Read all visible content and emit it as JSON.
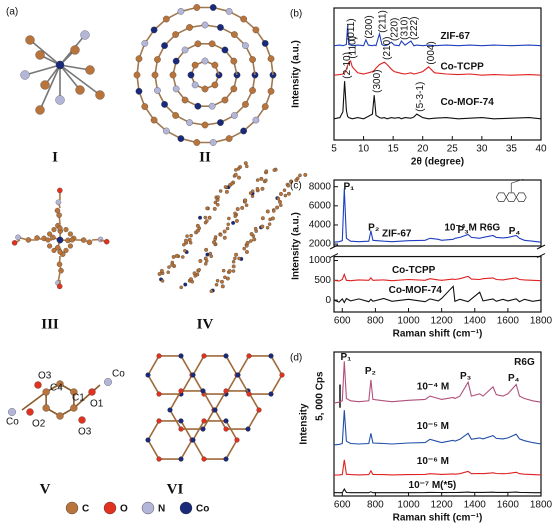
{
  "panel_a": {
    "label": "(a)",
    "structures": [
      "I",
      "II",
      "III",
      "IV",
      "V",
      "VI"
    ],
    "v_labels": [
      "O3",
      "C4",
      "Co",
      "O2",
      "C1",
      "O1",
      "Co",
      "O3"
    ],
    "legend": [
      {
        "name": "C",
        "color": "#b8743a"
      },
      {
        "name": "O",
        "color": "#e0321f"
      },
      {
        "name": "N",
        "color": "#b3b6d9"
      },
      {
        "name": "Co",
        "color": "#1a2a7a"
      }
    ]
  },
  "chart_data": [
    {
      "type": "line",
      "panel_label": "(b)",
      "x_label": "2θ (degree)",
      "y_label": "Intensity (a.u.)",
      "x": [
        5,
        6,
        6.5,
        6.8,
        7.1,
        7.3,
        7.5,
        7.8,
        8.1,
        9,
        10,
        10.4,
        10.8,
        11.5,
        11.8,
        12.1,
        12.7,
        13.1,
        13.5,
        14,
        14.7,
        15.2,
        16,
        16.4,
        17,
        18,
        18.5,
        19,
        20,
        21,
        22,
        24,
        26,
        28,
        30,
        32,
        35,
        38,
        40
      ],
      "xlim": [
        5,
        40
      ],
      "xticks": [
        5,
        10,
        15,
        20,
        25,
        30,
        35,
        40
      ],
      "ylim": [
        0,
        112
      ],
      "series": [
        {
          "name": "ZIF-67",
          "color": "#1f3fbf",
          "values": [
            80,
            80.5,
            80,
            80.5,
            81,
            97,
            81,
            80.5,
            80,
            80.5,
            80,
            85,
            80.5,
            80,
            80.5,
            80,
            90,
            81,
            80,
            80.5,
            83,
            80.5,
            80,
            84,
            80.5,
            84,
            80,
            80.5,
            80,
            80.5,
            80,
            80.5,
            80,
            80.5,
            80,
            80.5,
            80,
            80.5,
            80
          ]
        },
        {
          "name": "Co-TCPP",
          "color": "#e02020",
          "values": [
            55,
            55.5,
            56,
            57,
            60,
            63,
            66,
            67,
            62,
            57,
            56,
            56.5,
            57,
            58,
            59,
            61,
            64,
            65,
            66,
            64,
            60,
            58,
            57,
            56.5,
            56,
            57,
            56,
            56.5,
            58,
            62,
            57,
            56,
            55.5,
            56,
            55,
            55.5,
            55,
            55.5,
            55
          ]
        },
        {
          "name": "Co-MOF-74",
          "color": "#111111",
          "values": [
            18,
            19,
            24,
            50,
            25,
            20,
            19,
            18.5,
            18,
            19,
            18,
            19,
            20,
            22,
            38,
            21,
            19,
            18.5,
            19,
            18,
            19,
            18.5,
            19,
            18,
            19,
            18.5,
            19.5,
            22,
            19,
            18,
            18.5,
            19,
            18,
            18.5,
            19,
            18,
            18.5,
            19,
            18
          ]
        }
      ],
      "annotations": [
        "(011)",
        "(200)",
        "(211)",
        "(220)",
        "(310)",
        "(222)",
        "(110)",
        "(210)",
        "(004)",
        "(2-10)",
        "(300)",
        "(5-3-1)"
      ]
    },
    {
      "type": "line",
      "panel_label": "(c)",
      "x_label": "Raman shift (cm⁻¹)",
      "y_label": "Intensity (a.u.)",
      "x": [
        550,
        580,
        600,
        612,
        625,
        650,
        700,
        760,
        773,
        785,
        850,
        900,
        1000,
        1100,
        1130,
        1180,
        1200,
        1270,
        1280,
        1310,
        1360,
        1380,
        1430,
        1450,
        1510,
        1530,
        1570,
        1600,
        1650,
        1670,
        1700,
        1750,
        1800
      ],
      "xlim": [
        550,
        1800
      ],
      "xticks": [
        600,
        800,
        1000,
        1200,
        1400,
        1600,
        1800
      ],
      "ylim": [
        -300,
        1100
      ],
      "yticks": [
        0,
        500,
        1000
      ],
      "upper_ylim": [
        1800,
        8700
      ],
      "upper_yticks": [
        2000,
        4000,
        6000,
        8000
      ],
      "series": [
        {
          "name": "ZIF-67",
          "color": "#1f3fbf",
          "axis": "upper",
          "values": [
            2200,
            2250,
            2350,
            7800,
            2600,
            2300,
            2250,
            2300,
            3400,
            2400,
            2300,
            2250,
            2350,
            2400,
            2600,
            2500,
            2400,
            2500,
            2600,
            2700,
            3000,
            2700,
            2600,
            2700,
            2900,
            2700,
            2650,
            2700,
            2900,
            2600,
            2400,
            2300,
            2200
          ]
        },
        {
          "name": "Co-TCPP",
          "color": "#e02020",
          "values": [
            500,
            480,
            520,
            650,
            500,
            490,
            510,
            500,
            560,
            500,
            510,
            490,
            520,
            500,
            540,
            510,
            500,
            530,
            520,
            540,
            600,
            530,
            520,
            540,
            560,
            520,
            510,
            530,
            560,
            520,
            510,
            500,
            490
          ]
        },
        {
          "name": "Co-MOF-74",
          "color": "#111111",
          "values": [
            0,
            -50,
            30,
            -60,
            40,
            -20,
            30,
            -40,
            20,
            -30,
            40,
            -30,
            20,
            -40,
            30,
            -20,
            40,
            350,
            -30,
            20,
            -40,
            30,
            200,
            -20,
            30,
            -30,
            20,
            -20,
            30,
            -40,
            20,
            -30,
            0
          ]
        }
      ],
      "annotations": [
        "P₁",
        "P₂",
        "P₃",
        "P₄",
        "10⁻⁴ M R6G"
      ]
    },
    {
      "type": "line",
      "panel_label": "(d)",
      "x_label": "Raman shift (cm⁻¹)",
      "y_label": "Intensity",
      "x": [
        550,
        580,
        600,
        612,
        625,
        650,
        700,
        760,
        773,
        785,
        850,
        900,
        1000,
        1100,
        1130,
        1180,
        1200,
        1270,
        1280,
        1310,
        1360,
        1380,
        1430,
        1450,
        1510,
        1530,
        1570,
        1600,
        1650,
        1670,
        1700,
        1750,
        1800
      ],
      "xlim": [
        550,
        1800
      ],
      "xticks": [
        600,
        800,
        1000,
        1200,
        1400,
        1600,
        1800
      ],
      "ylim": [
        0,
        31000
      ],
      "scale_bar": {
        "value": 5000,
        "label": "5, 000 Cps"
      },
      "series": [
        {
          "name": "10⁻⁴ M",
          "color": "#b0507a",
          "values": [
            20000,
            20200,
            20500,
            29000,
            21000,
            20500,
            20300,
            20500,
            25000,
            20800,
            20500,
            20300,
            20600,
            20800,
            21500,
            21000,
            20800,
            21200,
            21000,
            21500,
            24500,
            21500,
            22000,
            21500,
            23500,
            21800,
            21500,
            22000,
            24000,
            21500,
            21000,
            20500,
            20200
          ]
        },
        {
          "name": "10⁻⁵ M",
          "color": "#1f4fa8",
          "values": [
            11000,
            11100,
            11300,
            18500,
            11800,
            11300,
            11200,
            11300,
            13500,
            11400,
            11300,
            11200,
            11400,
            11500,
            12200,
            11700,
            11500,
            12000,
            11800,
            12200,
            13500,
            12200,
            12500,
            12300,
            13000,
            12400,
            12300,
            12500,
            13300,
            12300,
            11900,
            11500,
            11200
          ]
        },
        {
          "name": "10⁻⁶ M",
          "color": "#e02020",
          "values": [
            4500,
            4550,
            4600,
            7800,
            4700,
            4600,
            4550,
            4600,
            5400,
            4650,
            4600,
            4550,
            4600,
            4650,
            4800,
            4700,
            4650,
            4750,
            4700,
            4800,
            5300,
            4800,
            4850,
            4800,
            5000,
            4850,
            4800,
            4850,
            5100,
            4800,
            4700,
            4600,
            4550
          ]
        },
        {
          "name": "10⁻⁷ M(*5)",
          "color": "#111111",
          "values": [
            700,
            700,
            720,
            1500,
            750,
            720,
            700,
            720,
            900,
            720,
            710,
            700,
            720,
            730,
            780,
            750,
            730,
            760,
            750,
            780,
            850,
            770,
            780,
            770,
            820,
            780,
            770,
            780,
            830,
            770,
            750,
            720,
            700
          ]
        }
      ],
      "annotations": [
        "P₁",
        "P₂",
        "P₃",
        "P₄",
        "R6G"
      ]
    }
  ]
}
